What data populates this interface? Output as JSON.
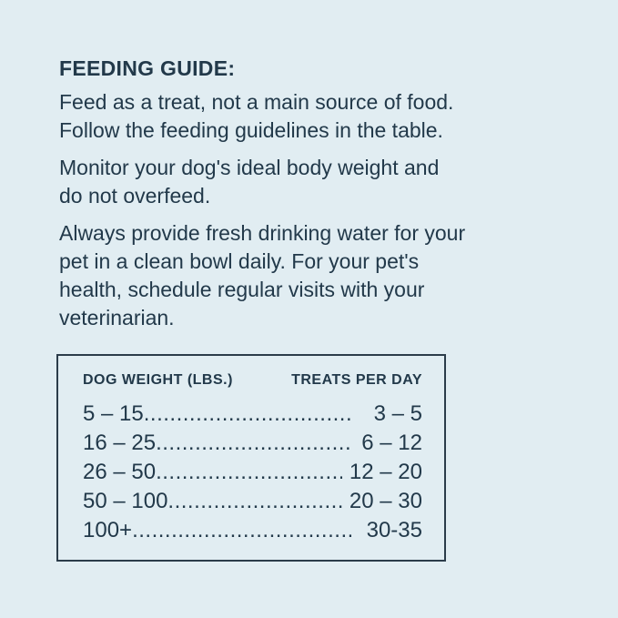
{
  "colors": {
    "background": "#e1edf2",
    "text": "#22394a",
    "table_border": "#2b3c4a"
  },
  "heading": "FEEDING GUIDE:",
  "paragraphs": [
    {
      "lines": [
        "Feed as a treat, not a main source of food.",
        "Follow the feeding guidelines in the table."
      ]
    },
    {
      "lines": [
        "Monitor your dog's ideal body weight and",
        "do not overfeed."
      ]
    },
    {
      "lines": [
        "Always provide fresh drinking water for your",
        "pet in a clean bowl daily. For your pet's",
        "health, schedule regular visits with your",
        "veterinarian."
      ]
    }
  ],
  "table": {
    "headers": [
      "DOG WEIGHT (LBS.)",
      "TREATS PER DAY"
    ],
    "rows": [
      {
        "weight": "5 – 15",
        "treats": "3 – 5"
      },
      {
        "weight": "16 – 25",
        "treats": "6 – 12"
      },
      {
        "weight": "26 – 50",
        "treats": "12 – 20"
      },
      {
        "weight": "50 – 100",
        "treats": "20 – 30"
      },
      {
        "weight": "100+",
        "treats": "30-35"
      }
    ]
  }
}
